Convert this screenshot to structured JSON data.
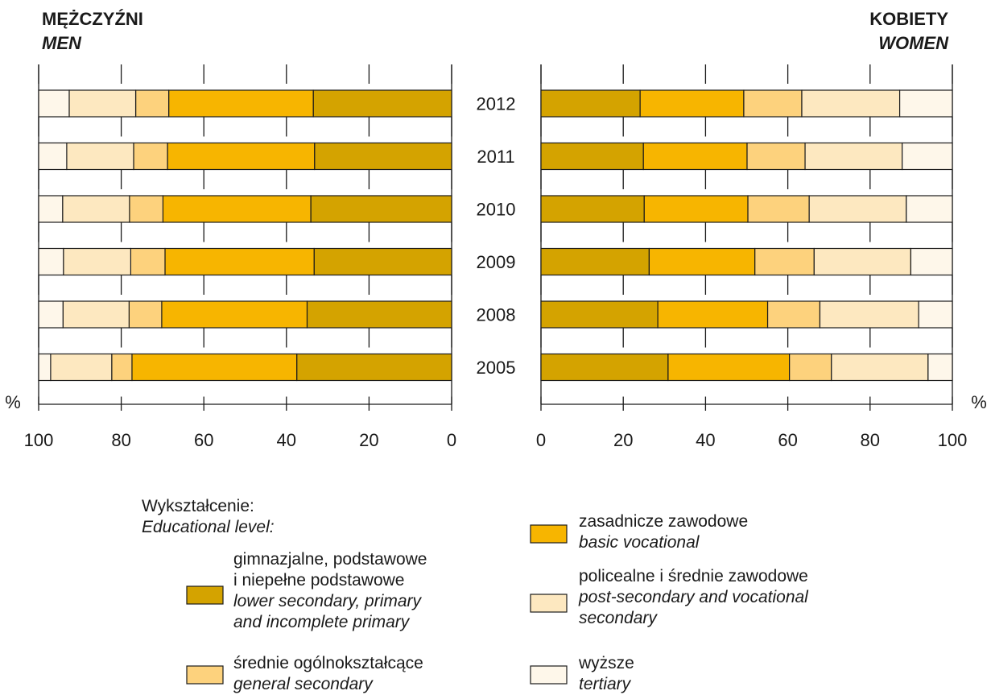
{
  "chart_data": {
    "type": "bar",
    "orientation": "horizontal",
    "stacked": true,
    "unit": "%",
    "categories": [
      "2012",
      "2011",
      "2010",
      "2009",
      "2008",
      "2005"
    ],
    "panels": [
      {
        "id": "men",
        "title": "MĘŻCZYŹNI",
        "subtitle": "MEN",
        "direction": "right-to-left",
        "xlim": [
          0,
          100
        ],
        "ticks": [
          "100",
          "80",
          "60",
          "40",
          "20",
          "0"
        ],
        "series_values": {
          "lower_secondary": [
            33.5,
            33.2,
            34.1,
            33.3,
            35.0,
            37.5
          ],
          "basic_vocational": [
            35.0,
            35.6,
            35.8,
            36.1,
            35.2,
            39.9
          ],
          "general_secondary": [
            8.0,
            8.2,
            8.1,
            8.3,
            7.9,
            4.9
          ],
          "post_secondary": [
            16.1,
            16.2,
            16.2,
            16.3,
            16.0,
            14.8
          ],
          "tertiary": [
            7.4,
            6.8,
            5.8,
            6.0,
            5.9,
            2.9
          ]
        }
      },
      {
        "id": "women",
        "title": "KOBIETY",
        "subtitle": "WOMEN",
        "direction": "left-to-right",
        "xlim": [
          0,
          100
        ],
        "ticks": [
          "0",
          "20",
          "40",
          "60",
          "80",
          "100"
        ],
        "series_values": {
          "lower_secondary": [
            24.1,
            24.9,
            25.1,
            26.3,
            28.4,
            30.9
          ],
          "basic_vocational": [
            25.2,
            25.2,
            25.2,
            25.7,
            26.7,
            29.5
          ],
          "general_secondary": [
            14.1,
            14.1,
            14.9,
            14.4,
            12.7,
            10.2
          ],
          "post_secondary": [
            23.8,
            23.6,
            23.6,
            23.5,
            24.0,
            23.5
          ],
          "tertiary": [
            12.8,
            12.2,
            11.2,
            10.1,
            8.2,
            5.9
          ]
        }
      }
    ],
    "series": [
      {
        "key": "lower_secondary",
        "color": "#d4a300",
        "label_pl": [
          "gimnazjalne, podstawowe",
          "i niepełne podstawowe"
        ],
        "label_en": [
          "lower secondary, primary",
          "and incomplete primary"
        ]
      },
      {
        "key": "basic_vocational",
        "color": "#f7b500",
        "label_pl": [
          "zasadnicze zawodowe"
        ],
        "label_en": [
          "basic vocational"
        ]
      },
      {
        "key": "general_secondary",
        "color": "#fdd27d",
        "label_pl": [
          "średnie ogólnokształcące"
        ],
        "label_en": [
          "general secondary"
        ]
      },
      {
        "key": "post_secondary",
        "color": "#fde8c0",
        "label_pl": [
          "policealne i średnie zawodowe"
        ],
        "label_en": [
          "post-secondary and vocational",
          "secondary"
        ]
      },
      {
        "key": "tertiary",
        "color": "#fef7ea",
        "label_pl": [
          "wyższe"
        ],
        "label_en": [
          "tertiary"
        ]
      }
    ],
    "legend": {
      "title_pl": "Wykształcenie:",
      "title_en": "Educational level:",
      "placement": "bottom"
    },
    "axis_unit_label": "%",
    "grid": false
  }
}
